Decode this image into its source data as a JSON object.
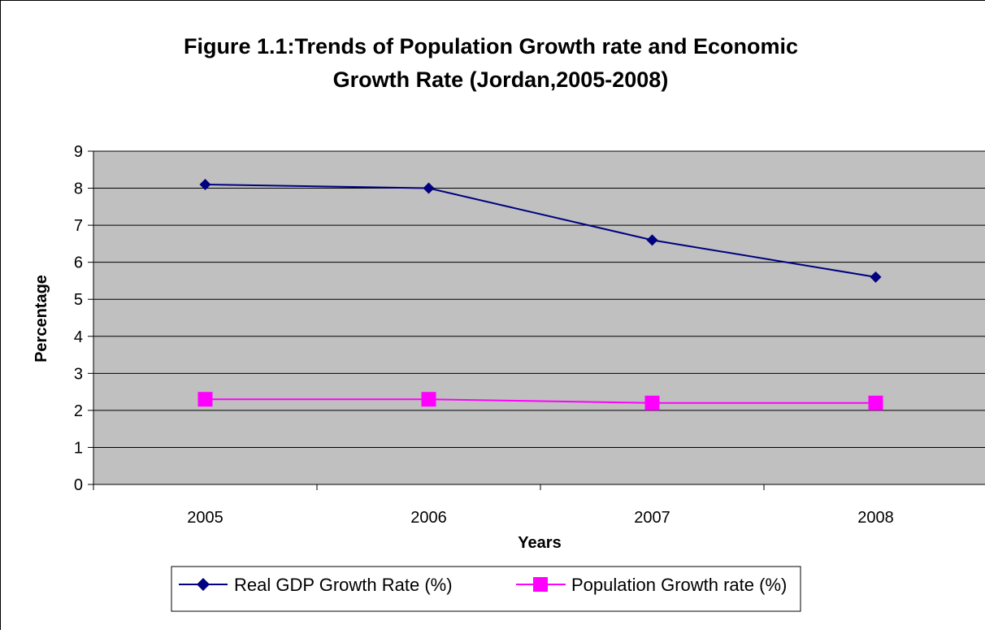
{
  "chart_data": {
    "type": "line",
    "title_line1": "Figure 1.1:Trends of Population Growth rate and Economic",
    "title_line2": "Growth Rate (Jordan,2005-2008)",
    "xlabel": "Years",
    "ylabel": "Percentage",
    "categories": [
      "2005",
      "2006",
      "2007",
      "2008"
    ],
    "ylim": [
      0,
      9
    ],
    "yticks": [
      "0",
      "1",
      "2",
      "3",
      "4",
      "5",
      "6",
      "7",
      "8",
      "9"
    ],
    "grid": true,
    "plot_background": "#C0C0C0",
    "legend_position": "bottom",
    "series": [
      {
        "name": "Real GDP Growth Rate (%)",
        "values": [
          8.1,
          8.0,
          6.6,
          5.6
        ],
        "color": "#000080",
        "marker": "diamond"
      },
      {
        "name": "Population  Growth rate (%)",
        "values": [
          2.3,
          2.3,
          2.2,
          2.2
        ],
        "color": "#FF00FF",
        "marker": "square"
      }
    ]
  }
}
